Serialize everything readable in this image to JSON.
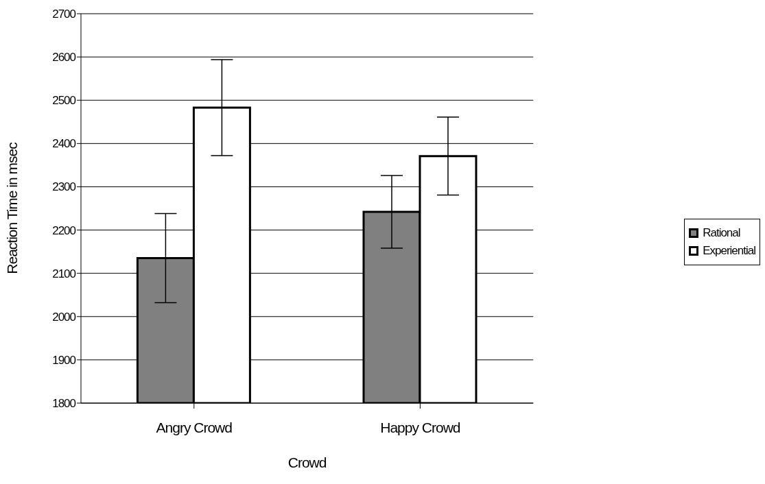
{
  "chart_data": {
    "type": "bar",
    "xlabel": "Crowd",
    "ylabel": "Reaction Time in msec",
    "categories": [
      "Angry Crowd",
      "Happy Crowd"
    ],
    "series": [
      {
        "name": "Rational",
        "color": "#808080",
        "values": [
          2135,
          2242
        ],
        "errors": [
          103,
          84
        ]
      },
      {
        "name": "Experiential",
        "color": "#ffffff",
        "values": [
          2483,
          2371
        ],
        "errors": [
          111,
          90
        ]
      }
    ],
    "ylim": [
      1800,
      2700
    ],
    "yticks": [
      1800,
      1900,
      2000,
      2100,
      2200,
      2300,
      2400,
      2500,
      2600,
      2700
    ],
    "grid": "y",
    "legend": "right"
  }
}
